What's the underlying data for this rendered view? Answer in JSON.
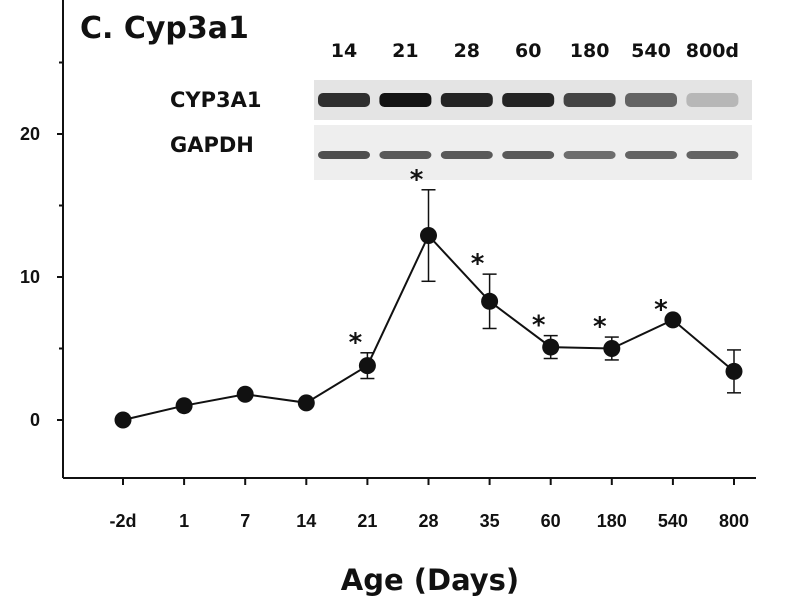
{
  "panel_title": "C. Cyp3a1",
  "blot": {
    "lane_labels": [
      "14",
      "21",
      "28",
      "60",
      "180",
      "540",
      "800d"
    ],
    "rows": [
      {
        "label": "CYP3A1",
        "intensity": [
          0.85,
          0.98,
          0.9,
          0.9,
          0.75,
          0.6,
          0.2
        ]
      },
      {
        "label": "GAPDH",
        "intensity": [
          0.7,
          0.65,
          0.65,
          0.65,
          0.55,
          0.6,
          0.6
        ]
      }
    ]
  },
  "chart_data": {
    "type": "line",
    "title": "C. Cyp3a1",
    "xlabel": "Age (Days)",
    "ylabel": "",
    "categories": [
      "-2d",
      "1",
      "7",
      "14",
      "21",
      "28",
      "35",
      "60",
      "180",
      "540",
      "800"
    ],
    "series": [
      {
        "values": [
          0,
          1.0,
          1.8,
          1.2,
          3.8,
          12.9,
          8.3,
          5.1,
          5.0,
          7.0,
          3.4
        ],
        "error": [
          0,
          0,
          0,
          0,
          0.9,
          3.2,
          1.9,
          0.8,
          0.8,
          0,
          1.5
        ],
        "significant": [
          false,
          false,
          false,
          false,
          true,
          true,
          true,
          true,
          true,
          true,
          false
        ]
      }
    ],
    "ylim": [
      -4,
      27
    ],
    "yticks": [
      "0",
      "10",
      "20"
    ],
    "y_minor_ticks": [
      -5,
      5,
      15,
      25
    ],
    "grid": false,
    "marker": "filled-circle",
    "color": "#111111"
  }
}
